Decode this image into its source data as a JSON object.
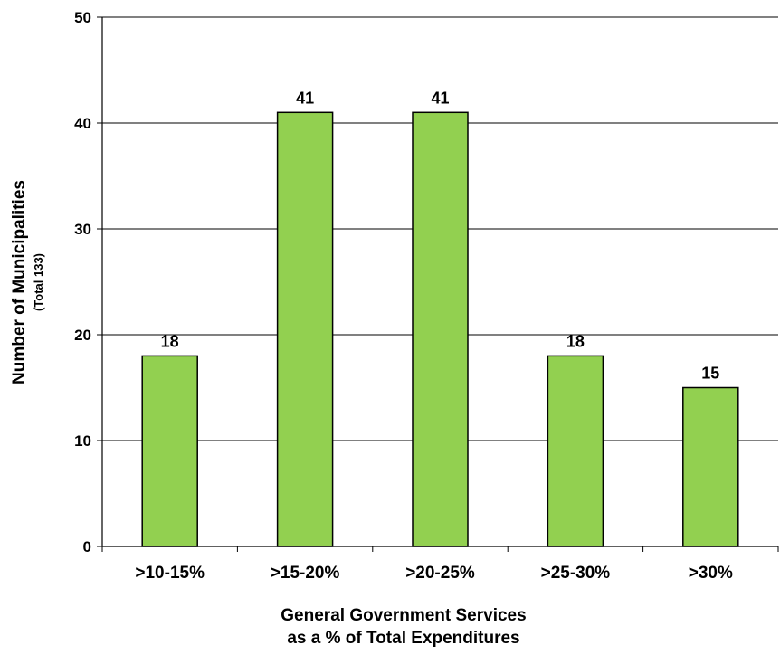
{
  "chart_data": {
    "type": "bar",
    "categories": [
      ">10-15%",
      ">15-20%",
      ">20-25%",
      ">25-30%",
      ">30%"
    ],
    "values": [
      18,
      41,
      41,
      18,
      15
    ],
    "data_labels": [
      "18",
      "41",
      "41",
      "18",
      "15"
    ],
    "title": "",
    "xlabel_line1": "General Government Services",
    "xlabel_line2": "as a % of Total Expenditures",
    "ylabel": "Number of Municipalities",
    "ylabel_sub": "(Total 133)",
    "ylim": [
      0,
      50
    ],
    "yticks": [
      0,
      10,
      20,
      30,
      40,
      50
    ],
    "grid": true,
    "legend": "none",
    "bar_color": "#92d050",
    "bar_outline_color": "#000000",
    "grid_color": "#000000"
  }
}
